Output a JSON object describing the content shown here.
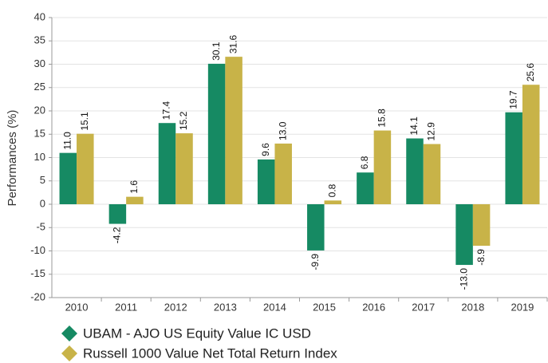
{
  "chart_data": {
    "type": "bar",
    "y_label": "Performances (%)",
    "categories": [
      "2010",
      "2011",
      "2012",
      "2013",
      "2014",
      "2015",
      "2016",
      "2017",
      "2018",
      "2019"
    ],
    "series": [
      {
        "name": "UBAM - AJO US Equity Value IC USD",
        "color": "#168a63",
        "values": [
          11.0,
          -4.2,
          17.4,
          30.1,
          9.6,
          -9.9,
          6.8,
          14.1,
          -13.0,
          19.7
        ],
        "value_labels": [
          "11.0",
          "-4.2",
          "17.4",
          "30.1",
          "9.6",
          "-9.9",
          "6.8",
          "14.1",
          "-13.0",
          "19.7"
        ]
      },
      {
        "name": "Russell 1000 Value Net Total Return Index",
        "color": "#c8b348",
        "values": [
          15.1,
          1.6,
          15.2,
          31.6,
          13.0,
          0.8,
          15.8,
          12.9,
          -8.9,
          25.6
        ],
        "value_labels": [
          "15.1",
          "1.6",
          "15.2",
          "31.6",
          "13.0",
          "0.8",
          "15.8",
          "12.9",
          "-8.9",
          "25.6"
        ]
      }
    ],
    "ylim": [
      -20,
      40
    ],
    "yticks": [
      -20,
      -15,
      -10,
      -5,
      0,
      5,
      10,
      15,
      20,
      25,
      30,
      35,
      40
    ],
    "grid": true,
    "legend": "bottom"
  }
}
